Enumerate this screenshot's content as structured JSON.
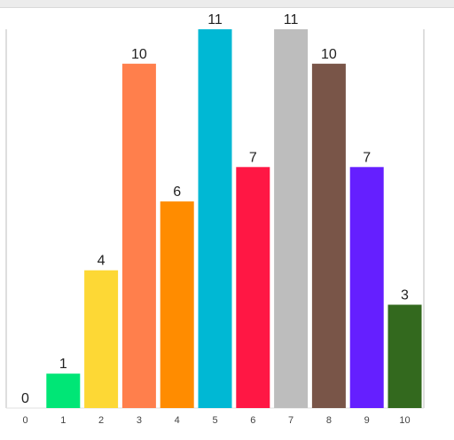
{
  "chart_data": {
    "type": "bar",
    "categories": [
      "0",
      "1",
      "2",
      "3",
      "4",
      "5",
      "6",
      "7",
      "8",
      "9",
      "10"
    ],
    "values": [
      0,
      1,
      4,
      10,
      6,
      11,
      7,
      11,
      10,
      7,
      3
    ],
    "colors": [
      "#9e9e9e",
      "#00e676",
      "#fdd835",
      "#ff7f4c",
      "#ff8c00",
      "#00b8d4",
      "#ff1744",
      "#bdbdbd",
      "#795548",
      "#651fff",
      "#33691e"
    ],
    "ylim": [
      0,
      11
    ],
    "grid": false,
    "legend": "none",
    "data_labels": true
  }
}
